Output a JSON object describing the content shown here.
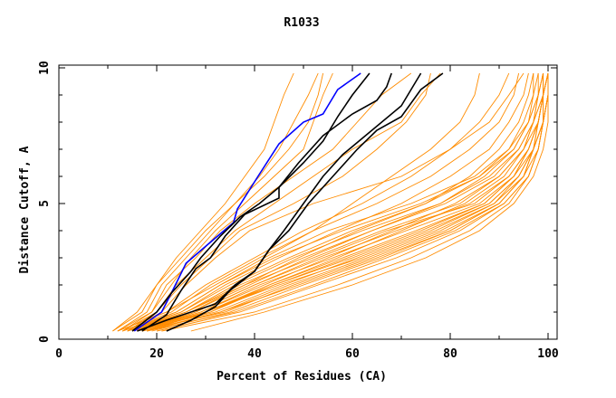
{
  "chart_data": {
    "type": "line",
    "title": "R1033",
    "xlabel": "Percent of Residues (CA)",
    "ylabel": "Distance Cutoff, A",
    "xlim": [
      0,
      100
    ],
    "ylim": [
      0,
      10
    ],
    "x_ticks": [
      "0",
      "20",
      "40",
      "60",
      "80",
      "100"
    ],
    "y_ticks": [
      "0",
      "5",
      "10"
    ],
    "grid": false,
    "colors": {
      "other": "#ff8c00",
      "highlight_black": "#000000",
      "highlight_blue": "#0000ff"
    },
    "orange_y_levels": [
      0.3,
      1,
      2,
      3,
      4,
      5,
      6,
      7,
      8,
      9,
      9.8
    ],
    "orange_series_x": [
      [
        13,
        24,
        33,
        44,
        58,
        74,
        86,
        93,
        96,
        98,
        99
      ],
      [
        14,
        26,
        36,
        48,
        62,
        78,
        88,
        94,
        97,
        99,
        100
      ],
      [
        15,
        27,
        38,
        52,
        66,
        82,
        90,
        95,
        98,
        99,
        100
      ],
      [
        16,
        29,
        41,
        56,
        71,
        86,
        93,
        97,
        99,
        100,
        100
      ],
      [
        17,
        31,
        44,
        60,
        75,
        88,
        94,
        97,
        99,
        100,
        100
      ],
      [
        14,
        25,
        34,
        45,
        57,
        70,
        80,
        88,
        92,
        95,
        96
      ],
      [
        15,
        28,
        40,
        54,
        69,
        84,
        92,
        96,
        98,
        99,
        100
      ],
      [
        18,
        33,
        47,
        63,
        78,
        89,
        94,
        97,
        98,
        99,
        100
      ],
      [
        16,
        30,
        43,
        58,
        73,
        87,
        93,
        96,
        98,
        99,
        99
      ],
      [
        13,
        23,
        31,
        41,
        52,
        65,
        76,
        84,
        90,
        93,
        94
      ],
      [
        19,
        35,
        50,
        66,
        80,
        90,
        95,
        98,
        99,
        100,
        100
      ],
      [
        20,
        37,
        53,
        69,
        82,
        91,
        96,
        98,
        99,
        100,
        100
      ],
      [
        14,
        27,
        39,
        51,
        64,
        79,
        89,
        94,
        97,
        98,
        99
      ],
      [
        15,
        29,
        42,
        55,
        68,
        81,
        90,
        95,
        97,
        99,
        99
      ],
      [
        16,
        32,
        46,
        61,
        76,
        88,
        94,
        97,
        98,
        99,
        100
      ],
      [
        12,
        22,
        30,
        40,
        50,
        62,
        72,
        80,
        86,
        90,
        92
      ],
      [
        17,
        34,
        48,
        64,
        79,
        90,
        95,
        97,
        99,
        100,
        100
      ],
      [
        18,
        36,
        52,
        67,
        81,
        91,
        96,
        98,
        99,
        100,
        100
      ],
      [
        21,
        40,
        57,
        72,
        84,
        92,
        96,
        98,
        99,
        100,
        100
      ],
      [
        27,
        42,
        60,
        75,
        86,
        93,
        97,
        99,
        100,
        100,
        100
      ],
      [
        15,
        30,
        45,
        62,
        77,
        89,
        95,
        97,
        99,
        99,
        100
      ],
      [
        14,
        26,
        37,
        50,
        64,
        78,
        87,
        93,
        96,
        98,
        98
      ],
      [
        16,
        31,
        43,
        57,
        70,
        83,
        91,
        95,
        97,
        98,
        99
      ],
      [
        13,
        25,
        35,
        47,
        60,
        75,
        86,
        92,
        96,
        97,
        98
      ],
      [
        17,
        33,
        49,
        65,
        80,
        90,
        95,
        97,
        99,
        99,
        100
      ],
      [
        14,
        24,
        33,
        43,
        55,
        72,
        85,
        92,
        95,
        97,
        97
      ],
      [
        16,
        28,
        40,
        53,
        67,
        85,
        92,
        96,
        98,
        99,
        100
      ],
      [
        18,
        30,
        44,
        59,
        74,
        87,
        93,
        96,
        98,
        99,
        99
      ],
      [
        15,
        26,
        38,
        49,
        61,
        75,
        84,
        90,
        94,
        96,
        97
      ],
      [
        12,
        22,
        32,
        42,
        52,
        60,
        68,
        76,
        82,
        85,
        86
      ],
      [
        11,
        17,
        20,
        24,
        29,
        34,
        38,
        42,
        44,
        46,
        48
      ],
      [
        11,
        16,
        20,
        25,
        30,
        36,
        42,
        47,
        51,
        53,
        54
      ],
      [
        12,
        18,
        21,
        26,
        31,
        36,
        41,
        45,
        48,
        51,
        53
      ],
      [
        13,
        19,
        23,
        27,
        32,
        38,
        44,
        50,
        52,
        54,
        56
      ],
      [
        12,
        19,
        22,
        28,
        33,
        40,
        48,
        56,
        61,
        66,
        72
      ],
      [
        14,
        20,
        24,
        30,
        36,
        44,
        52,
        60,
        70,
        74,
        78
      ],
      [
        13,
        20,
        25,
        31,
        37,
        48,
        58,
        65,
        71,
        75,
        76
      ],
      [
        14,
        21,
        26,
        32,
        39,
        52,
        70,
        80,
        88,
        92,
        95
      ]
    ],
    "highlight_series": [
      {
        "color": "#0000ff",
        "points": [
          [
            15.4,
            0.3
          ],
          [
            21,
            1.0
          ],
          [
            23,
            1.7
          ],
          [
            26,
            2.8
          ],
          [
            30.5,
            3.5
          ],
          [
            35.7,
            4.3
          ],
          [
            36.5,
            4.8
          ],
          [
            40.7,
            6.0
          ],
          [
            45,
            7.2
          ],
          [
            50,
            8.0
          ],
          [
            54,
            8.3
          ],
          [
            57,
            9.2
          ],
          [
            61.7,
            9.8
          ]
        ]
      },
      {
        "color": "#000000",
        "points": [
          [
            15,
            0.3
          ],
          [
            20,
            1
          ],
          [
            23,
            1.7
          ],
          [
            27,
            2.5
          ],
          [
            29,
            3
          ],
          [
            33,
            3.8
          ],
          [
            37,
            4.5
          ],
          [
            41,
            5
          ],
          [
            45,
            5.6
          ],
          [
            50,
            6.5
          ],
          [
            54,
            7.3
          ],
          [
            57,
            8.2
          ],
          [
            60,
            9
          ],
          [
            63.5,
            9.8
          ]
        ]
      },
      {
        "color": "#000000",
        "points": [
          [
            17,
            0.3
          ],
          [
            22,
            0.9
          ],
          [
            25,
            1.8
          ],
          [
            28,
            2.6
          ],
          [
            31,
            3
          ],
          [
            34,
            3.8
          ],
          [
            38,
            4.6
          ],
          [
            45,
            5.2
          ],
          [
            45,
            5.6
          ],
          [
            49,
            6.5
          ],
          [
            54,
            7.5
          ],
          [
            60,
            8.3
          ],
          [
            65,
            8.8
          ],
          [
            67,
            9.3
          ],
          [
            68,
            9.8
          ]
        ]
      },
      {
        "color": "#000000",
        "points": [
          [
            16,
            0.3
          ],
          [
            22,
            0.7
          ],
          [
            27,
            1
          ],
          [
            32,
            1.3
          ],
          [
            36,
            2
          ],
          [
            40,
            2.5
          ],
          [
            43,
            3.3
          ],
          [
            46,
            4
          ],
          [
            50,
            5
          ],
          [
            54,
            6
          ],
          [
            58,
            6.8
          ],
          [
            64,
            7.7
          ],
          [
            70,
            8.6
          ],
          [
            74,
            9.8
          ]
        ]
      },
      {
        "color": "#000000",
        "points": [
          [
            22,
            0.3
          ],
          [
            27,
            0.7
          ],
          [
            32,
            1.2
          ],
          [
            35,
            1.8
          ],
          [
            40,
            2.5
          ],
          [
            43,
            3.3
          ],
          [
            47,
            4
          ],
          [
            51,
            5
          ],
          [
            56,
            6
          ],
          [
            61,
            7
          ],
          [
            65,
            7.7
          ],
          [
            70,
            8.2
          ],
          [
            74,
            9.2
          ],
          [
            78.5,
            9.8
          ]
        ]
      }
    ]
  }
}
